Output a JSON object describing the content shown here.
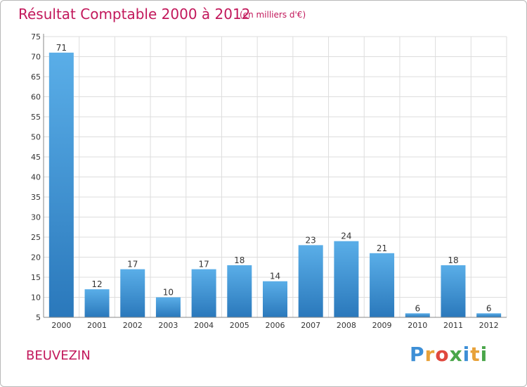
{
  "chart_data": {
    "type": "bar",
    "title": "Résultat Comptable 2000 à 2012",
    "subtitle": "(en milliers d'€)",
    "categories": [
      "2000",
      "2001",
      "2002",
      "2003",
      "2004",
      "2005",
      "2006",
      "2007",
      "2008",
      "2009",
      "2010",
      "2011",
      "2012"
    ],
    "values": [
      71,
      12,
      17,
      10,
      17,
      18,
      14,
      23,
      24,
      21,
      6,
      18,
      6
    ],
    "yticks": [
      5,
      10,
      15,
      20,
      25,
      30,
      35,
      40,
      45,
      50,
      55,
      60,
      65,
      70,
      75
    ],
    "ylim": [
      5,
      75
    ],
    "xlabel": "",
    "ylabel": "",
    "grid": true,
    "colors": {
      "bar_top": "#5aaee8",
      "bar_bottom": "#2a78bb",
      "grid": "#dddddd",
      "axis": "#888888"
    }
  },
  "footer": {
    "commune": "BEUVEZIN",
    "logo": {
      "text": "Proxiti",
      "letters": [
        {
          "ch": "P",
          "color": "#3d8fd6"
        },
        {
          "ch": "r",
          "color": "#e8a23a"
        },
        {
          "ch": "o",
          "color": "#e0483e"
        },
        {
          "ch": "x",
          "color": "#4aa64a"
        },
        {
          "ch": "i",
          "color": "#3d8fd6"
        },
        {
          "ch": "t",
          "color": "#e8a23a"
        },
        {
          "ch": "i",
          "color": "#4aa64a"
        }
      ]
    }
  }
}
